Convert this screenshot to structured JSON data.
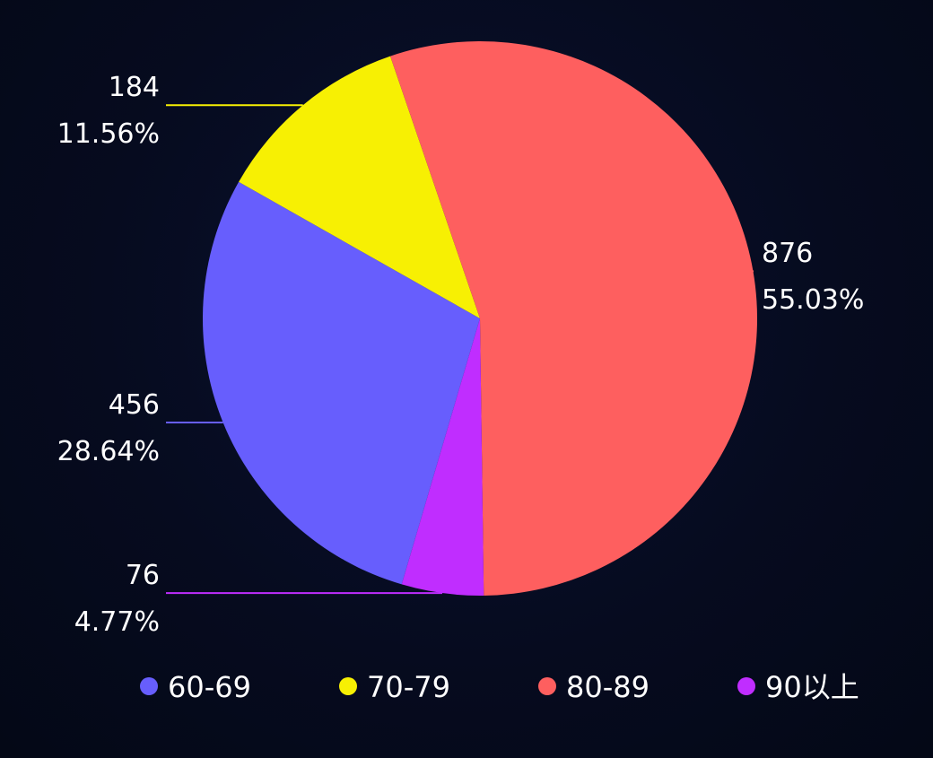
{
  "chart_data": {
    "type": "pie",
    "title": "",
    "legend": "bottom",
    "slices": [
      {
        "name": "60-69",
        "value": 456,
        "percent": "28.64%",
        "color": "#675efd"
      },
      {
        "name": "70-79",
        "value": 184,
        "percent": "11.56%",
        "color": "#f7f003"
      },
      {
        "name": "80-89",
        "value": 876,
        "percent": "55.03%",
        "color": "#fe5f5f"
      },
      {
        "name": "90以上",
        "value": 76,
        "percent": "4.77%",
        "color": "#c02dff"
      }
    ]
  }
}
